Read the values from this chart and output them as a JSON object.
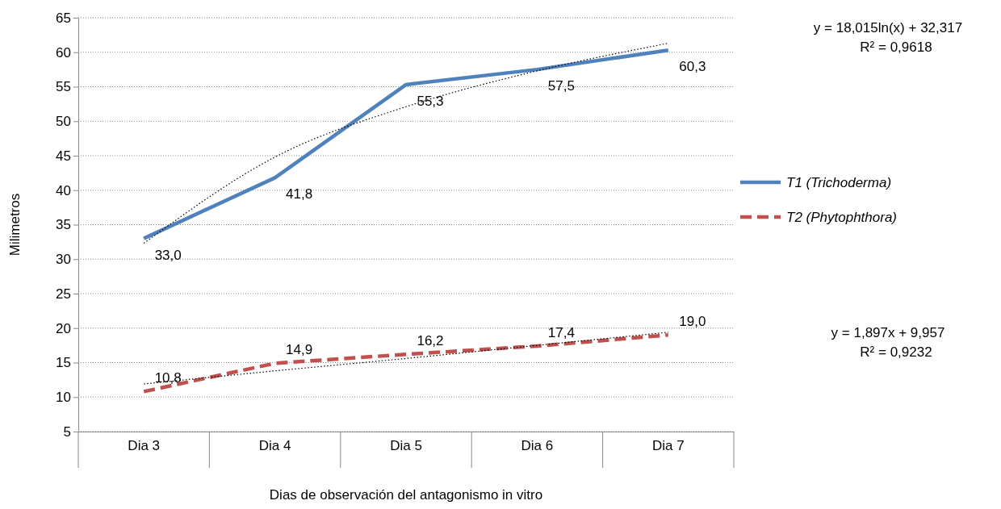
{
  "chart_data": {
    "type": "line",
    "ylabel": "Milimetros",
    "xlabel": "Dias de observación del antagonismo in vitro",
    "categories": [
      "Dia 3",
      "Dia 4",
      "Dia 5",
      "Dia 6",
      "Dia 7"
    ],
    "ylim": [
      5,
      65
    ],
    "yticks": [
      5,
      10,
      15,
      20,
      25,
      30,
      35,
      40,
      45,
      50,
      55,
      60,
      65
    ],
    "grid": "y",
    "legend": "right",
    "series": [
      {
        "name": "T1 (Trichoderma)",
        "color": "#4f81bd",
        "line_style": "solid",
        "values": [
          33.0,
          41.8,
          55.3,
          57.5,
          60.3
        ],
        "value_labels": [
          "33,0",
          "41,8",
          "55,3",
          "57,5",
          "60,3"
        ]
      },
      {
        "name": "T2 (Phytophthora)",
        "color": "#c0504d",
        "line_style": "dashed",
        "values": [
          10.8,
          14.9,
          16.2,
          17.4,
          19.0
        ],
        "value_labels": [
          "10,8",
          "14,9",
          "16,2",
          "17,4",
          "19,0"
        ]
      },
      {
        "type": "line",
        "color": "#000000",
        "line_style": "dotted",
        "values": [
          32.3,
          44.8,
          52.1,
          57.3,
          61.3
        ]
      },
      {
        "type": "line",
        "color": "#000000",
        "line_style": "dotted",
        "values": [
          11.9,
          13.8,
          15.6,
          17.5,
          19.4
        ]
      }
    ],
    "annotations": [
      "y = 18,015ln(x) + 32,317",
      "R² = 0,9618",
      "y = 1,897x + 9,957",
      "R² = 0,9232"
    ]
  }
}
